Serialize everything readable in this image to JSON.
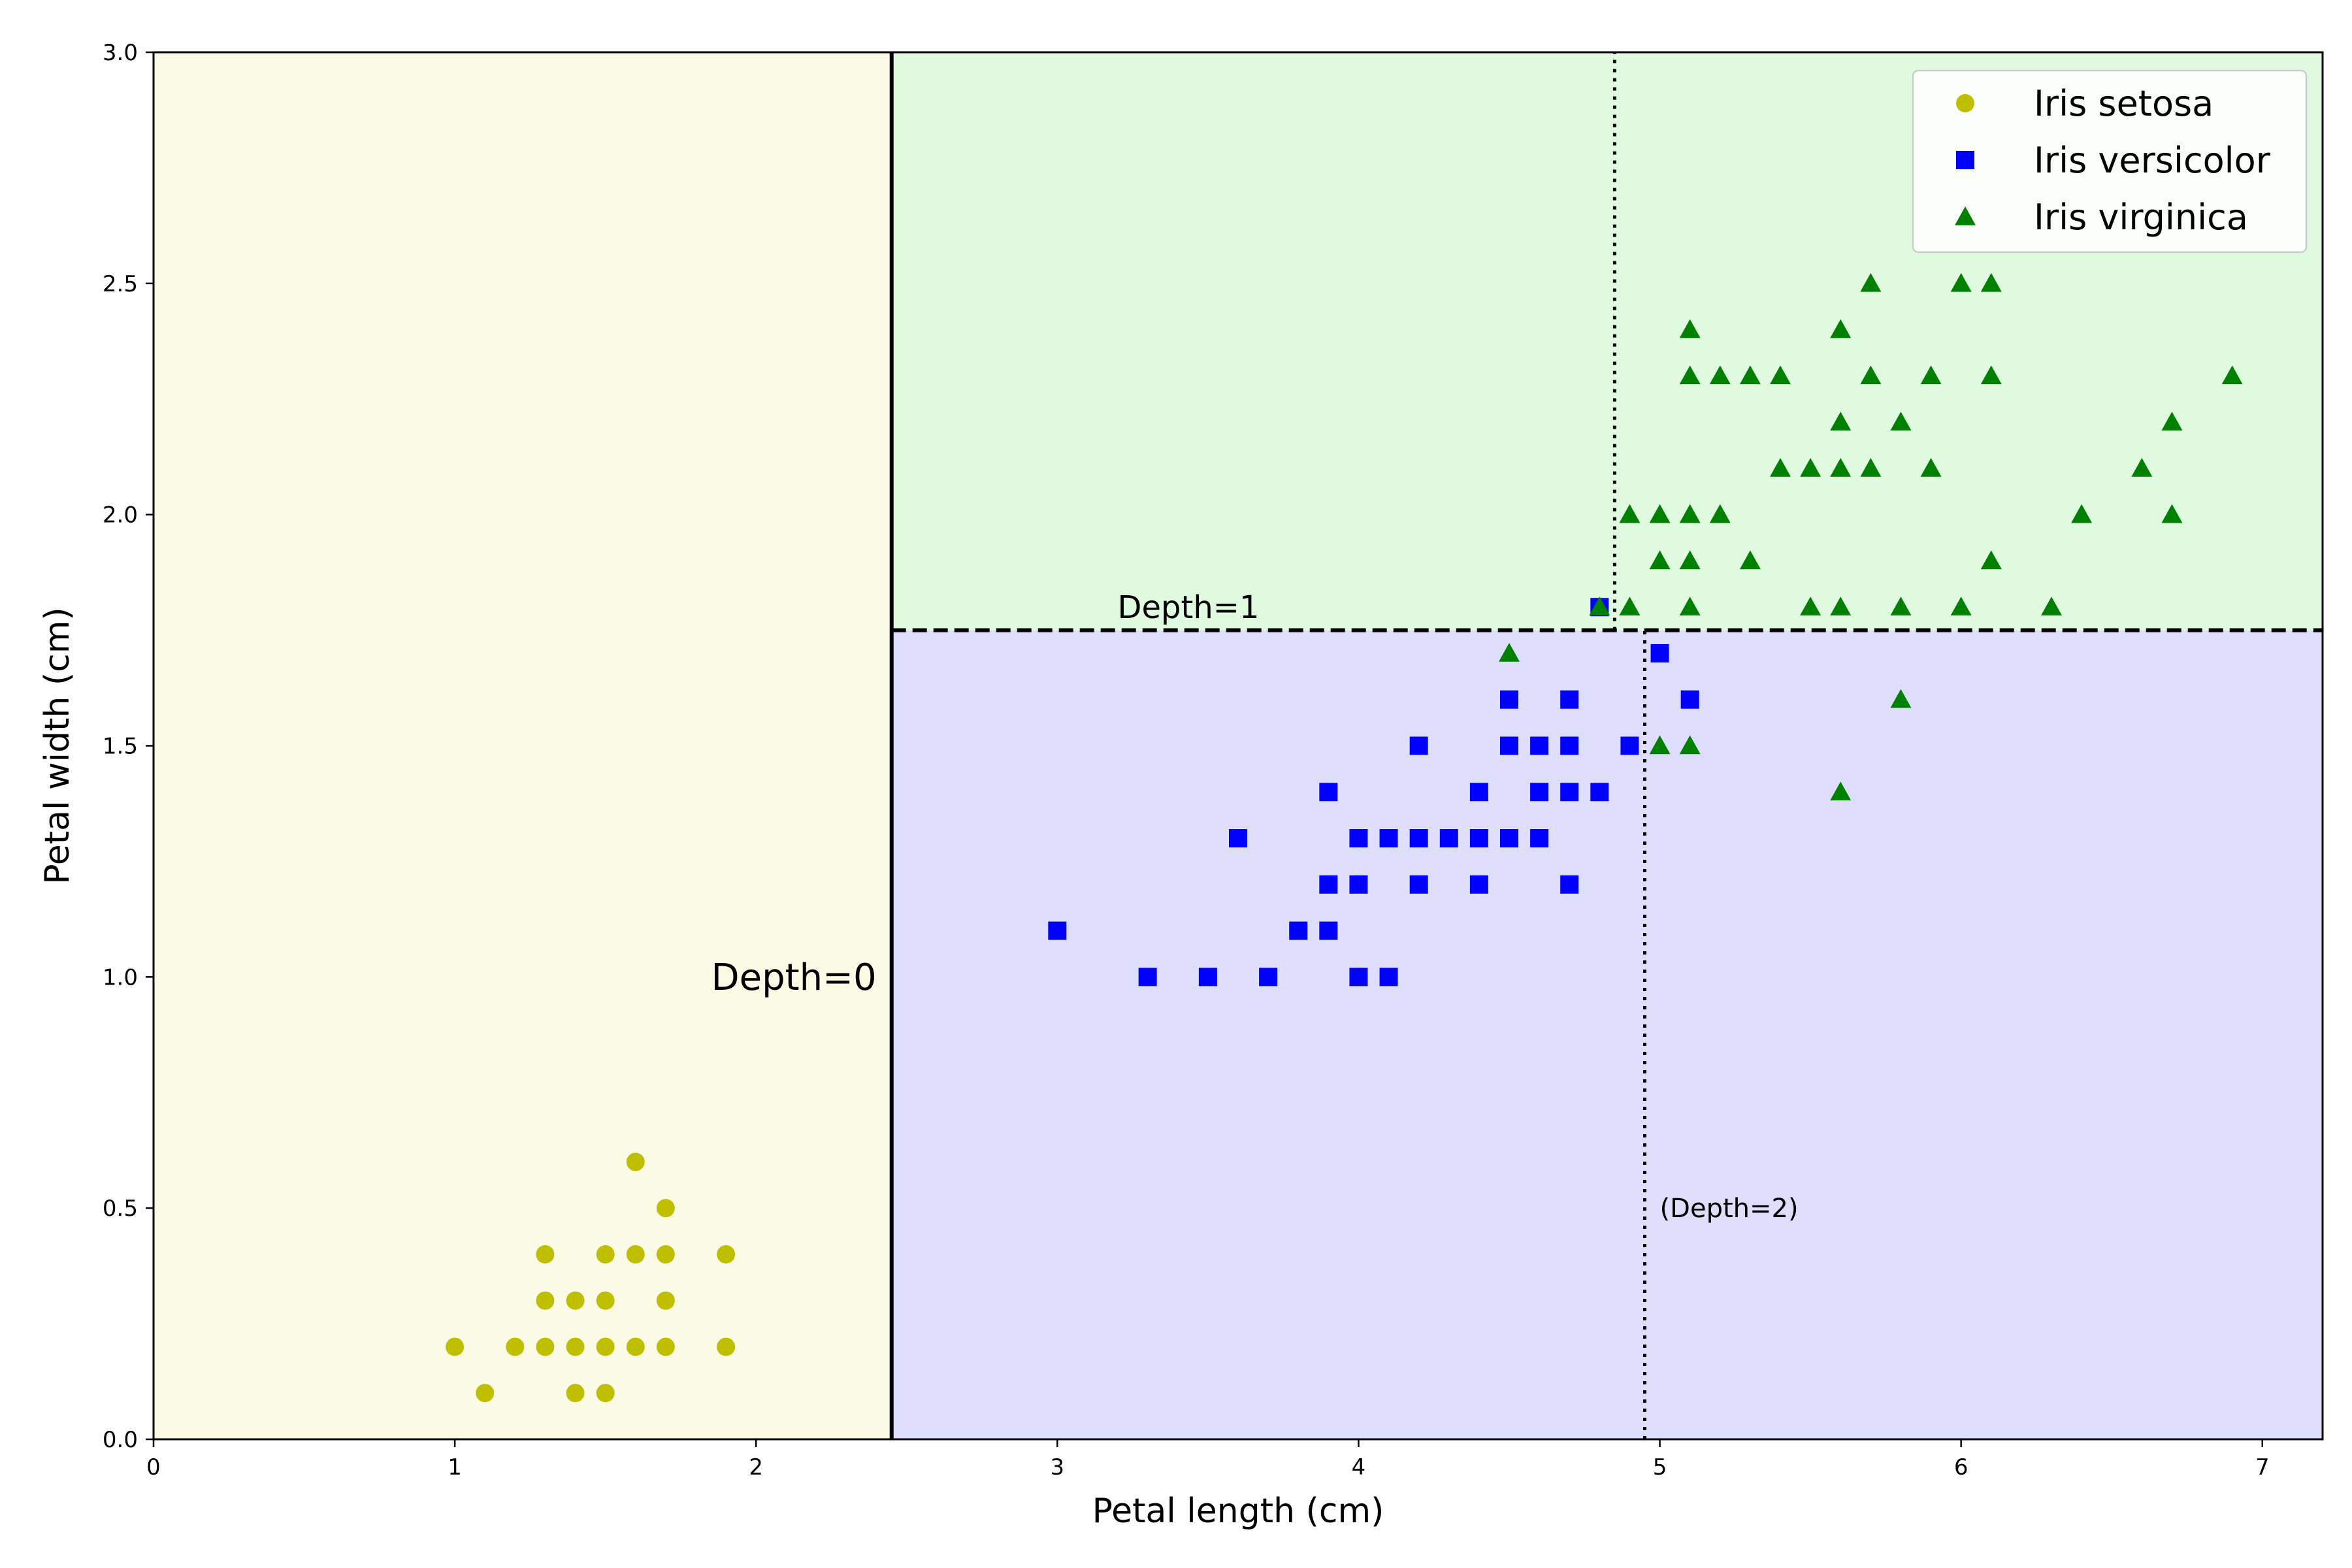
{
  "chart_data": {
    "type": "scatter",
    "xlabel": "Petal length (cm)",
    "ylabel": "Petal width (cm)",
    "xlim": [
      0,
      7.2
    ],
    "ylim": [
      0,
      3.0
    ],
    "xticks": [
      "0",
      "1",
      "2",
      "3",
      "4",
      "5",
      "6",
      "7"
    ],
    "yticks": [
      "0.0",
      "0.5",
      "1.0",
      "1.5",
      "2.0",
      "2.5",
      "3.0"
    ],
    "grid": false,
    "legend_position": "top-right",
    "regions": [
      {
        "class": "Iris setosa",
        "x": [
          0,
          2.45
        ],
        "y": [
          0,
          3.0
        ],
        "color": "#fafae5"
      },
      {
        "class": "Iris versicolor",
        "x": [
          2.45,
          7.2
        ],
        "y": [
          0,
          1.75
        ],
        "color": "#dedefc"
      },
      {
        "class": "Iris virginica",
        "x": [
          2.45,
          7.2
        ],
        "y": [
          1.75,
          3.0
        ],
        "color": "#e0fae0"
      }
    ],
    "decision_boundaries": [
      {
        "orientation": "vertical",
        "x": 2.45,
        "y": [
          0,
          3.0
        ],
        "style": "solid"
      },
      {
        "orientation": "horizontal",
        "y": 1.75,
        "x": [
          2.45,
          7.2
        ],
        "style": "dashed"
      },
      {
        "orientation": "vertical",
        "x": 4.85,
        "y": [
          1.75,
          3.0
        ],
        "style": "dotted"
      },
      {
        "orientation": "vertical",
        "x": 4.95,
        "y": [
          0,
          1.75
        ],
        "style": "dotted"
      }
    ],
    "annotations": [
      {
        "text": "Depth=0",
        "x": 2.4,
        "y": 1.0,
        "anchor": "end",
        "size": "large"
      },
      {
        "text": "Depth=1",
        "x": 3.2,
        "y": 1.8,
        "anchor": "start",
        "size": "medium"
      },
      {
        "text": "(Depth=2)",
        "x": 5.0,
        "y": 0.5,
        "anchor": "start",
        "size": "small"
      }
    ],
    "series": [
      {
        "name": "Iris setosa",
        "marker": "circle",
        "color": "#bfbf00",
        "points": [
          [
            1.0,
            0.2
          ],
          [
            1.1,
            0.1
          ],
          [
            1.2,
            0.2
          ],
          [
            1.3,
            0.2
          ],
          [
            1.3,
            0.3
          ],
          [
            1.3,
            0.4
          ],
          [
            1.4,
            0.1
          ],
          [
            1.4,
            0.2
          ],
          [
            1.4,
            0.3
          ],
          [
            1.5,
            0.1
          ],
          [
            1.5,
            0.2
          ],
          [
            1.5,
            0.3
          ],
          [
            1.5,
            0.4
          ],
          [
            1.6,
            0.2
          ],
          [
            1.6,
            0.4
          ],
          [
            1.6,
            0.6
          ],
          [
            1.7,
            0.2
          ],
          [
            1.7,
            0.3
          ],
          [
            1.7,
            0.4
          ],
          [
            1.7,
            0.5
          ],
          [
            1.9,
            0.2
          ],
          [
            1.9,
            0.4
          ]
        ]
      },
      {
        "name": "Iris versicolor",
        "marker": "square",
        "color": "#0000ff",
        "points": [
          [
            3.0,
            1.1
          ],
          [
            3.3,
            1.0
          ],
          [
            3.5,
            1.0
          ],
          [
            3.6,
            1.3
          ],
          [
            3.7,
            1.0
          ],
          [
            3.8,
            1.1
          ],
          [
            3.9,
            1.1
          ],
          [
            3.9,
            1.2
          ],
          [
            3.9,
            1.4
          ],
          [
            4.0,
            1.0
          ],
          [
            4.0,
            1.2
          ],
          [
            4.0,
            1.3
          ],
          [
            4.1,
            1.0
          ],
          [
            4.1,
            1.3
          ],
          [
            4.2,
            1.2
          ],
          [
            4.2,
            1.3
          ],
          [
            4.2,
            1.5
          ],
          [
            4.3,
            1.3
          ],
          [
            4.4,
            1.2
          ],
          [
            4.4,
            1.3
          ],
          [
            4.4,
            1.4
          ],
          [
            4.5,
            1.3
          ],
          [
            4.5,
            1.5
          ],
          [
            4.5,
            1.6
          ],
          [
            4.6,
            1.3
          ],
          [
            4.6,
            1.4
          ],
          [
            4.6,
            1.5
          ],
          [
            4.7,
            1.2
          ],
          [
            4.7,
            1.4
          ],
          [
            4.7,
            1.5
          ],
          [
            4.7,
            1.6
          ],
          [
            4.8,
            1.4
          ],
          [
            4.8,
            1.8
          ],
          [
            4.9,
            1.5
          ],
          [
            5.0,
            1.7
          ],
          [
            5.1,
            1.6
          ]
        ]
      },
      {
        "name": "Iris virginica",
        "marker": "triangle",
        "color": "#008000",
        "points": [
          [
            4.5,
            1.7
          ],
          [
            4.8,
            1.8
          ],
          [
            4.9,
            1.8
          ],
          [
            4.9,
            2.0
          ],
          [
            5.0,
            1.5
          ],
          [
            5.0,
            1.9
          ],
          [
            5.0,
            2.0
          ],
          [
            5.1,
            1.5
          ],
          [
            5.1,
            1.8
          ],
          [
            5.1,
            1.9
          ],
          [
            5.1,
            2.0
          ],
          [
            5.1,
            2.3
          ],
          [
            5.1,
            2.4
          ],
          [
            5.2,
            2.0
          ],
          [
            5.2,
            2.3
          ],
          [
            5.3,
            1.9
          ],
          [
            5.3,
            2.3
          ],
          [
            5.4,
            2.1
          ],
          [
            5.4,
            2.3
          ],
          [
            5.5,
            1.8
          ],
          [
            5.5,
            2.1
          ],
          [
            5.6,
            1.4
          ],
          [
            5.6,
            1.8
          ],
          [
            5.6,
            2.1
          ],
          [
            5.6,
            2.2
          ],
          [
            5.6,
            2.4
          ],
          [
            5.7,
            2.1
          ],
          [
            5.7,
            2.3
          ],
          [
            5.7,
            2.5
          ],
          [
            5.8,
            1.6
          ],
          [
            5.8,
            1.8
          ],
          [
            5.8,
            2.2
          ],
          [
            5.9,
            2.1
          ],
          [
            5.9,
            2.3
          ],
          [
            6.0,
            1.8
          ],
          [
            6.0,
            2.5
          ],
          [
            6.1,
            1.9
          ],
          [
            6.1,
            2.3
          ],
          [
            6.1,
            2.5
          ],
          [
            6.3,
            1.8
          ],
          [
            6.4,
            2.0
          ],
          [
            6.6,
            2.1
          ],
          [
            6.7,
            2.0
          ],
          [
            6.7,
            2.2
          ],
          [
            6.9,
            2.3
          ]
        ]
      }
    ]
  }
}
